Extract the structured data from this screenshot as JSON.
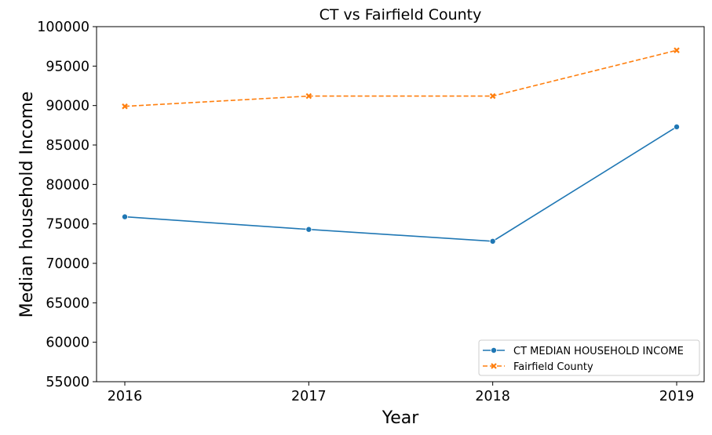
{
  "chart_data": {
    "type": "line",
    "title": "CT vs Fairfield County",
    "xlabel": "Year",
    "ylabel": "Median household Income",
    "x": [
      "2016",
      "2017",
      "2018",
      "2019"
    ],
    "ylim": [
      55000,
      100000
    ],
    "yticks": [
      "55000",
      "60000",
      "65000",
      "70000",
      "75000",
      "80000",
      "85000",
      "90000",
      "95000",
      "100000"
    ],
    "grid": false,
    "legend_position": "lower-right",
    "series": [
      {
        "name": "CT MEDIAN HOUSEHOLD INCOME",
        "values": [
          75900,
          74300,
          72800,
          87300
        ],
        "color": "#1f77b4",
        "marker": "circle",
        "linestyle": "solid"
      },
      {
        "name": "Fairfield County",
        "values": [
          89900,
          91200,
          91200,
          97000
        ],
        "color": "#ff7f0e",
        "marker": "x",
        "linestyle": "dashed"
      }
    ]
  }
}
